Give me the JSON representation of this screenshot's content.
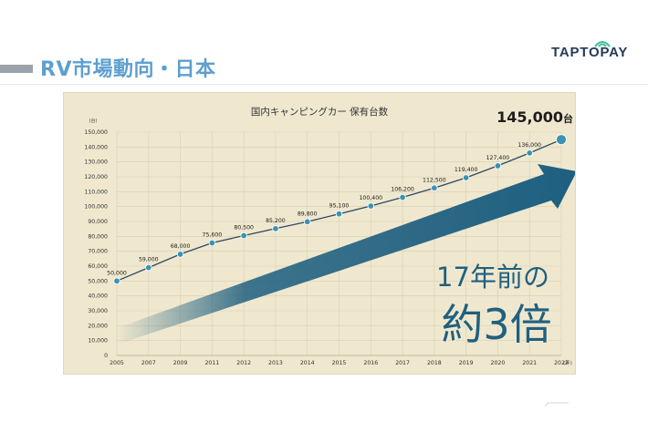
{
  "slide": {
    "title": "RV市場動向・日本",
    "logo": "TAPTOPAY"
  },
  "chart_data": {
    "type": "line",
    "title": "国内キャンピングカー 保有台数",
    "y_unit": "(台)",
    "x_unit": "(年)",
    "x": [
      2005,
      2007,
      2009,
      2011,
      2012,
      2013,
      2014,
      2015,
      2016,
      2017,
      2018,
      2019,
      2020,
      2021,
      2022
    ],
    "values": [
      50000,
      59000,
      68000,
      75600,
      80500,
      85200,
      89800,
      95100,
      100400,
      106200,
      112500,
      119400,
      127400,
      136000,
      145000
    ],
    "data_labels": [
      "50,000",
      "59,000",
      "68,000",
      "75,600",
      "80,500",
      "85,200",
      "89,800",
      "95,100",
      "100,400",
      "106,200",
      "112,500",
      "119,400",
      "127,400",
      "136,000",
      ""
    ],
    "y_ticks": [
      0,
      10000,
      20000,
      30000,
      40000,
      50000,
      60000,
      70000,
      80000,
      90000,
      100000,
      110000,
      120000,
      130000,
      140000,
      150000
    ],
    "y_tick_labels": [
      "0",
      "10,000",
      "20,000",
      "30,000",
      "40,000",
      "50,000",
      "60,000",
      "70,000",
      "80,000",
      "90,000",
      "100,000",
      "110,000",
      "120,000",
      "130,000",
      "140,000",
      "150,000"
    ],
    "ylim": [
      0,
      150000
    ],
    "grid": true,
    "final_value_label": "145,000",
    "final_value_unit": "台",
    "callout_line1": "17年前の",
    "callout_line2": "約3倍",
    "colors": {
      "line": "#2d4a61",
      "point": "#3a93b3",
      "arrow": "#1e5f80",
      "panel": "#efe8cf",
      "grid": "#d7cfb2"
    }
  }
}
